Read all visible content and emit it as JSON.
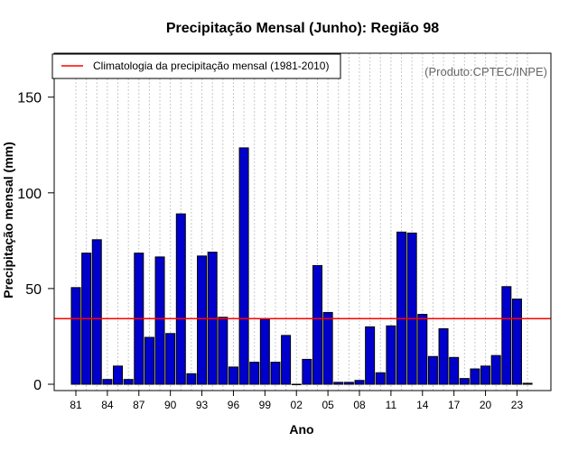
{
  "chart_data": {
    "type": "bar",
    "title": "Precipitação Mensal (Junho): Região 98",
    "xlabel": "Ano",
    "ylabel": "Precipitação mensal (mm)",
    "credit": "(Produto:CPTEC/INPE)",
    "ylim": [
      0,
      172
    ],
    "yticks": [
      0,
      50,
      100,
      150
    ],
    "xtick_labels": [
      "81",
      "84",
      "87",
      "90",
      "93",
      "96",
      "99",
      "02",
      "05",
      "08",
      "11",
      "14",
      "17",
      "20",
      "23"
    ],
    "xtick_years": [
      1981,
      1984,
      1987,
      1990,
      1993,
      1996,
      1999,
      2002,
      2005,
      2008,
      2011,
      2014,
      2017,
      2020,
      2023
    ],
    "years": [
      1981,
      1982,
      1983,
      1984,
      1985,
      1986,
      1987,
      1988,
      1989,
      1990,
      1991,
      1992,
      1993,
      1994,
      1995,
      1996,
      1997,
      1998,
      1999,
      2000,
      2001,
      2002,
      2003,
      2004,
      2005,
      2006,
      2007,
      2008,
      2009,
      2010,
      2011,
      2012,
      2013,
      2014,
      2015,
      2016,
      2017,
      2018,
      2019,
      2020,
      2021,
      2022,
      2023,
      2024
    ],
    "values": [
      50.5,
      68.5,
      75.5,
      2.5,
      9.5,
      2.5,
      68.5,
      24.5,
      66.5,
      26.5,
      89.0,
      5.5,
      67.0,
      69.0,
      35.0,
      9.0,
      123.5,
      11.5,
      34.0,
      11.5,
      25.5,
      0.0,
      13.0,
      62.0,
      37.5,
      1.0,
      1.0,
      2.0,
      30.0,
      6.0,
      30.5,
      79.5,
      79.0,
      36.5,
      14.5,
      29.0,
      14.0,
      3.0,
      8.0,
      9.5,
      15.0,
      51.0,
      44.5,
      0.5
    ],
    "climatology": {
      "label": "Climatologia da precipitação mensal (1981-2010)",
      "value": 34.3
    },
    "colors": {
      "bar": "#0000CC",
      "climatology": "#FF0000",
      "grid": "#C8C8C8"
    }
  }
}
